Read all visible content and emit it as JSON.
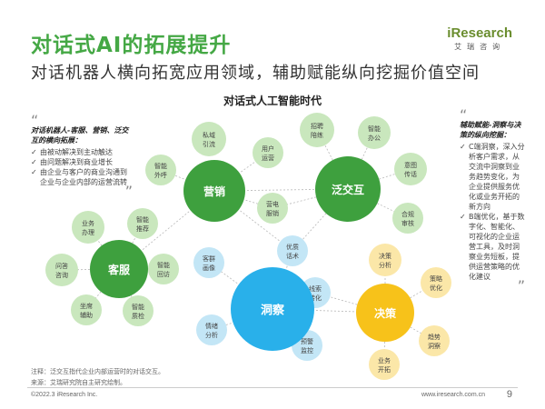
{
  "header": {
    "title": "对话式AI的拓展提升",
    "subtitle": "对话机器人横向拓宽应用领域，辅助赋能纵向挖掘价值空间",
    "logo_main": "iResearch",
    "logo_sub": "艾瑞咨询"
  },
  "diagram": {
    "title": "对话式人工智能时代",
    "colors": {
      "green": "#3ea03e",
      "blue": "#29b0ea",
      "orange": "#f7c21a",
      "small_green": "#c9e7bd",
      "small_blue": "#c3e6f6",
      "small_orange": "#fbe7a8"
    },
    "hubs": [
      {
        "label": "营销",
        "color": "green"
      },
      {
        "label": "泛交互",
        "color": "green"
      },
      {
        "label": "客服",
        "color": "green"
      },
      {
        "label": "洞察",
        "color": "blue"
      },
      {
        "label": "决策",
        "color": "orange"
      }
    ],
    "nodes": [
      {
        "lines": [
          "私域",
          "引流"
        ],
        "color": "small_green"
      },
      {
        "lines": [
          "用户",
          "运营"
        ],
        "color": "small_green"
      },
      {
        "lines": [
          "智能",
          "外呼"
        ],
        "color": "small_green"
      },
      {
        "lines": [
          "营电",
          "服销"
        ],
        "color": "small_green"
      },
      {
        "lines": [
          "招聘",
          "陪练"
        ],
        "color": "small_green"
      },
      {
        "lines": [
          "智能",
          "办公"
        ],
        "color": "small_green"
      },
      {
        "lines": [
          "意图",
          "传话"
        ],
        "color": "small_green"
      },
      {
        "lines": [
          "合规",
          "审核"
        ],
        "color": "small_green"
      },
      {
        "lines": [
          "业务",
          "办理"
        ],
        "color": "small_green"
      },
      {
        "lines": [
          "智能",
          "推荐"
        ],
        "color": "small_green"
      },
      {
        "lines": [
          "问答",
          "咨询"
        ],
        "color": "small_green"
      },
      {
        "lines": [
          "智能",
          "回访"
        ],
        "color": "small_green"
      },
      {
        "lines": [
          "坐席",
          "辅助"
        ],
        "color": "small_green"
      },
      {
        "lines": [
          "智能",
          "质检"
        ],
        "color": "small_green"
      },
      {
        "lines": [
          "优质",
          "话术"
        ],
        "color": "small_blue"
      },
      {
        "lines": [
          "客群",
          "画像"
        ],
        "color": "small_blue"
      },
      {
        "lines": [
          "情绪",
          "分析"
        ],
        "color": "small_blue"
      },
      {
        "lines": [
          "线索",
          "转化"
        ],
        "color": "small_blue"
      },
      {
        "lines": [
          "预警",
          "监控"
        ],
        "color": "small_blue"
      },
      {
        "lines": [
          "决策",
          "分析"
        ],
        "color": "small_orange"
      },
      {
        "lines": [
          "策略",
          "优化"
        ],
        "color": "small_orange"
      },
      {
        "lines": [
          "趋势",
          "洞察"
        ],
        "color": "small_orange"
      },
      {
        "lines": [
          "业务",
          "开拓"
        ],
        "color": "small_orange"
      }
    ]
  },
  "left_note": {
    "title": "对话机器人-客服、营销、泛交互的横向拓展：",
    "items": [
      "由被动解决到主动触达",
      "由问题解决到商业增长",
      "由企业与客户的商业沟通到企业与企业内部的运营流转"
    ]
  },
  "right_note": {
    "title": "辅助赋能-洞察与决策的纵向挖掘：",
    "items": [
      "C端洞察，深入分析客户需求，从交流中洞察到业务趋势变化，为企业提供服务优化或业务开拓的新方向",
      "B端优化，基于数字化、智能化、可视化的企业运营工具，及时洞察业务短板，提供运营策略的优化建议"
    ]
  },
  "footnotes": {
    "note": "注释：泛交互指代企业内部运营时的对话交互。",
    "source": "来源：艾瑞研究院自主研究绘制。"
  },
  "footer": {
    "copyright": "©2022.3 iResearch Inc.",
    "url": "www.iresearch.com.cn",
    "page": "9"
  }
}
